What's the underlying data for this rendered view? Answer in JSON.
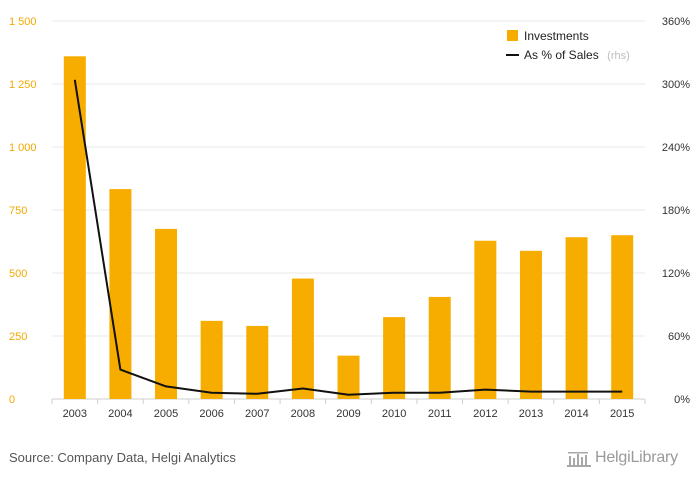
{
  "chart_data": {
    "type": "bar",
    "categories": [
      "2003",
      "2004",
      "2005",
      "2006",
      "2007",
      "2008",
      "2009",
      "2010",
      "2011",
      "2012",
      "2013",
      "2014",
      "2015"
    ],
    "series": [
      {
        "name": "Investments",
        "type": "bar",
        "axis": "left",
        "color": "#f7ad00",
        "values": [
          1360,
          833,
          675,
          310,
          290,
          478,
          172,
          325,
          405,
          628,
          588,
          642,
          650
        ]
      },
      {
        "name": "As % of Sales",
        "type": "line",
        "axis": "right",
        "color": "#111111",
        "values": [
          304,
          28,
          12,
          6,
          5,
          10,
          4,
          6,
          6,
          9,
          7,
          7,
          7
        ]
      }
    ],
    "legend_note": "(rhs)",
    "ylim_left": [
      0,
      1500
    ],
    "ylim_right": [
      0,
      360
    ],
    "yticks_left": [
      "0",
      "250",
      "500",
      "750",
      "1 000",
      "1 250",
      "1 500"
    ],
    "yticks_right": [
      "0%",
      "60%",
      "120%",
      "180%",
      "240%",
      "300%",
      "360%"
    ],
    "grid": true,
    "legend_position": "top-right"
  },
  "footer": {
    "source": "Source: Company Data, Helgi Analytics",
    "logo_text": "HelgiLibrary"
  }
}
